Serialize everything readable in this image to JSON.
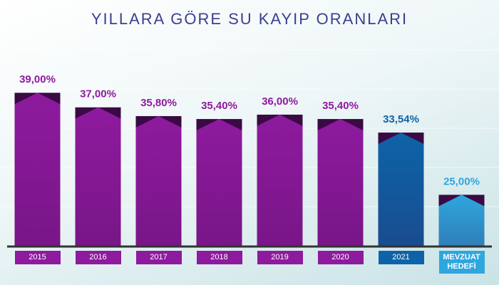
{
  "chart_data": {
    "type": "bar",
    "title": "YILLARA GÖRE SU KAYIP ORANLARI",
    "categories": [
      "2015",
      "2016",
      "2017",
      "2018",
      "2019",
      "2020",
      "2021",
      "MEVZUAT HEDEFİ"
    ],
    "values": [
      39,
      37,
      35.8,
      35.4,
      36,
      35.4,
      33.54,
      25
    ],
    "value_labels": [
      "39,00%",
      "37,00%",
      "35,80%",
      "35,40%",
      "36,00%",
      "35,40%",
      "33,54%",
      "25,00%"
    ],
    "colors": [
      "#8e1a9e",
      "#8e1a9e",
      "#8e1a9e",
      "#8e1a9e",
      "#8e1a9e",
      "#8e1a9e",
      "#0e63a8",
      "#2ea6de"
    ],
    "ylim": [
      18,
      40
    ]
  }
}
